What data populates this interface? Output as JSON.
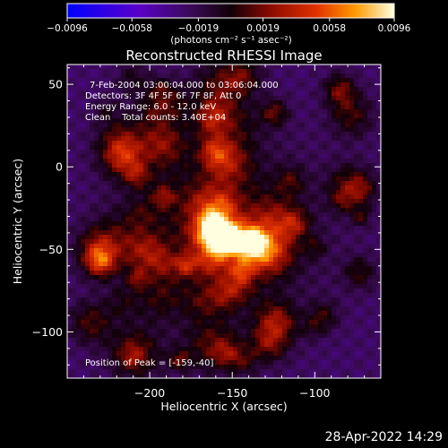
{
  "chart_data": {
    "type": "heatmap",
    "title": "Reconstructed RHESSI Image",
    "xlabel": "Heliocentric X (arcsec)",
    "ylabel": "Heliocentric Y (arcsec)",
    "xlim": [
      -250,
      -60
    ],
    "ylim": [
      -128,
      62
    ],
    "x_ticks": [
      -200,
      -150,
      -100
    ],
    "y_ticks": [
      -100,
      -50,
      0,
      50
    ],
    "x_tick_labels": [
      "−200",
      "−150",
      "−100"
    ],
    "y_tick_labels": [
      "−100",
      "−50",
      "0",
      "50"
    ],
    "colorbar": {
      "min": -0.0096,
      "max": 0.0096,
      "tick_values": [
        -0.0096,
        -0.0058,
        -0.0019,
        0.0019,
        0.0058,
        0.0096
      ],
      "tick_labels": [
        "−0.0096",
        "−0.0058",
        "−0.0019",
        "0.0019",
        "0.0058",
        "0.0096"
      ],
      "unit_label": "(photons cm⁻² s⁻¹ asec⁻²)"
    },
    "annotations": {
      "time_range": "7-Feb-2004 03:00:04.000 to 03:06:04.000",
      "detectors": "Detectors: 3F 4F 5F 6F 7F 8F, Att 0",
      "energy": "Energy Range: 6.0 - 12.0 keV",
      "clean": "Clean    Total counts: 3.40E+04",
      "peak": "Position of Peak = [-159,-40]"
    },
    "peak": {
      "x": -159,
      "y": -40
    }
  },
  "footer": {
    "date": "28-Apr-2022 14:29"
  },
  "colors": {
    "background": "#000000",
    "colormap": [
      "#0000ff",
      "#5a00c8",
      "#3c0a5a",
      "#000000",
      "#8a0a00",
      "#e03000",
      "#ff9000",
      "#ffff80",
      "#ffffff"
    ]
  }
}
